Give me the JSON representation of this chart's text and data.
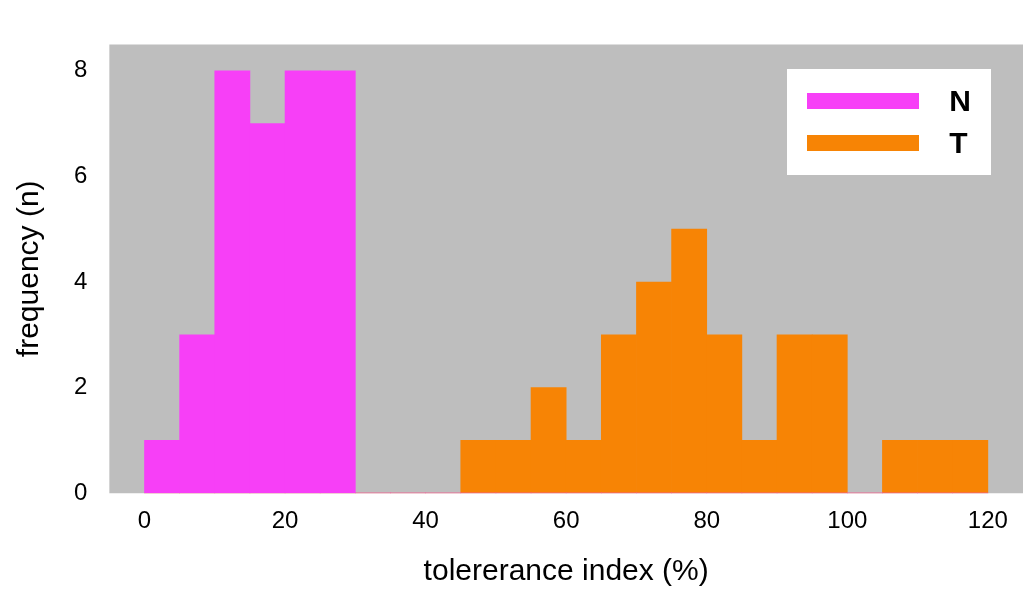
{
  "chart_data": {
    "type": "histogram",
    "xlabel": "tolererance index (%)",
    "ylabel": "frequency (n)",
    "bins": [
      0,
      5,
      10,
      15,
      20,
      25,
      30,
      35,
      40,
      45,
      50,
      55,
      60,
      65,
      70,
      75,
      80,
      85,
      90,
      95,
      100,
      105,
      110,
      115,
      120
    ],
    "series": [
      {
        "name": "N",
        "color": "#f73ff7",
        "values": [
          1,
          3,
          8,
          7,
          8,
          8,
          0,
          0,
          0,
          0,
          0,
          0,
          0,
          0,
          0,
          0,
          0,
          0,
          0,
          0,
          0,
          0,
          0,
          0
        ]
      },
      {
        "name": "T",
        "color": "#f78405",
        "values": [
          0,
          0,
          0,
          0,
          0,
          0,
          0,
          0,
          0,
          1,
          1,
          2,
          1,
          3,
          4,
          5,
          3,
          1,
          3,
          3,
          0,
          1,
          1,
          1
        ]
      }
    ],
    "xlim": [
      -5,
      125
    ],
    "xticks": [
      0,
      20,
      40,
      60,
      80,
      100,
      120
    ],
    "ylim": [
      0,
      8.5
    ],
    "yticks": [
      0,
      2,
      4,
      6,
      8
    ],
    "grid": false,
    "legend": "top right"
  }
}
